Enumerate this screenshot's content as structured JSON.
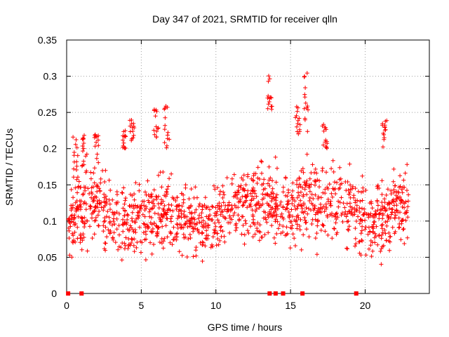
{
  "chart_data": {
    "type": "scatter",
    "title": "Day 347 of 2021, SRMTID for receiver qlln",
    "xlabel": "GPS time / hours",
    "ylabel": "SRMTID / TECUs",
    "xlim": [
      0,
      24.3
    ],
    "ylim": [
      0,
      0.35
    ],
    "grid": true,
    "xticks": [
      0,
      5,
      10,
      15,
      20
    ],
    "xtick_labels": [
      "0",
      "5",
      "10",
      "15",
      "20"
    ],
    "yticks": [
      0,
      0.05,
      0.1,
      0.15,
      0.2,
      0.25,
      0.3,
      0.35
    ],
    "ytick_labels": [
      "0",
      "0.05",
      "0.1",
      "0.15",
      "0.2",
      "0.25",
      "0.3",
      "0.35"
    ],
    "marker_color": "#ff0000",
    "series": [
      {
        "name": "SRMTID",
        "marker": "plus",
        "x_start": 0.1,
        "x_end": 22.9,
        "profile": [
          {
            "x": 0.0,
            "y": 0.1
          },
          {
            "x": 1.0,
            "y": 0.11
          },
          {
            "x": 2.0,
            "y": 0.13
          },
          {
            "x": 3.0,
            "y": 0.1
          },
          {
            "x": 4.0,
            "y": 0.1
          },
          {
            "x": 5.0,
            "y": 0.1
          },
          {
            "x": 6.0,
            "y": 0.11
          },
          {
            "x": 7.0,
            "y": 0.11
          },
          {
            "x": 8.0,
            "y": 0.1
          },
          {
            "x": 9.0,
            "y": 0.095
          },
          {
            "x": 10.0,
            "y": 0.1
          },
          {
            "x": 11.0,
            "y": 0.12
          },
          {
            "x": 12.0,
            "y": 0.12
          },
          {
            "x": 13.0,
            "y": 0.13
          },
          {
            "x": 14.0,
            "y": 0.13
          },
          {
            "x": 15.0,
            "y": 0.11
          },
          {
            "x": 16.0,
            "y": 0.13
          },
          {
            "x": 17.0,
            "y": 0.12
          },
          {
            "x": 18.0,
            "y": 0.13
          },
          {
            "x": 19.0,
            "y": 0.12
          },
          {
            "x": 20.0,
            "y": 0.1
          },
          {
            "x": 21.0,
            "y": 0.1
          },
          {
            "x": 22.0,
            "y": 0.12
          },
          {
            "x": 23.0,
            "y": 0.12
          }
        ],
        "spread": 0.045,
        "bursts": [
          {
            "x": 0.6,
            "y": [
              0.16,
              0.22
            ]
          },
          {
            "x": 1.2,
            "y": [
              0.17,
              0.22
            ]
          },
          {
            "x": 2.0,
            "y": [
              0.17,
              0.22
            ]
          },
          {
            "x": 3.8,
            "y": [
              0.2,
              0.225
            ]
          },
          {
            "x": 4.4,
            "y": [
              0.21,
              0.24
            ]
          },
          {
            "x": 6.0,
            "y": [
              0.2,
              0.255
            ]
          },
          {
            "x": 6.7,
            "y": [
              0.2,
              0.26
            ]
          },
          {
            "x": 13.6,
            "y": [
              0.25,
              0.31
            ]
          },
          {
            "x": 15.5,
            "y": [
              0.22,
              0.26
            ]
          },
          {
            "x": 16.0,
            "y": [
              0.22,
              0.305
            ]
          },
          {
            "x": 17.3,
            "y": [
              0.2,
              0.235
            ]
          },
          {
            "x": 21.3,
            "y": [
              0.2,
              0.24
            ]
          }
        ],
        "zero_points_x": [
          0.1,
          1.0,
          13.6,
          14.0,
          14.5,
          15.8,
          19.4
        ]
      }
    ]
  }
}
